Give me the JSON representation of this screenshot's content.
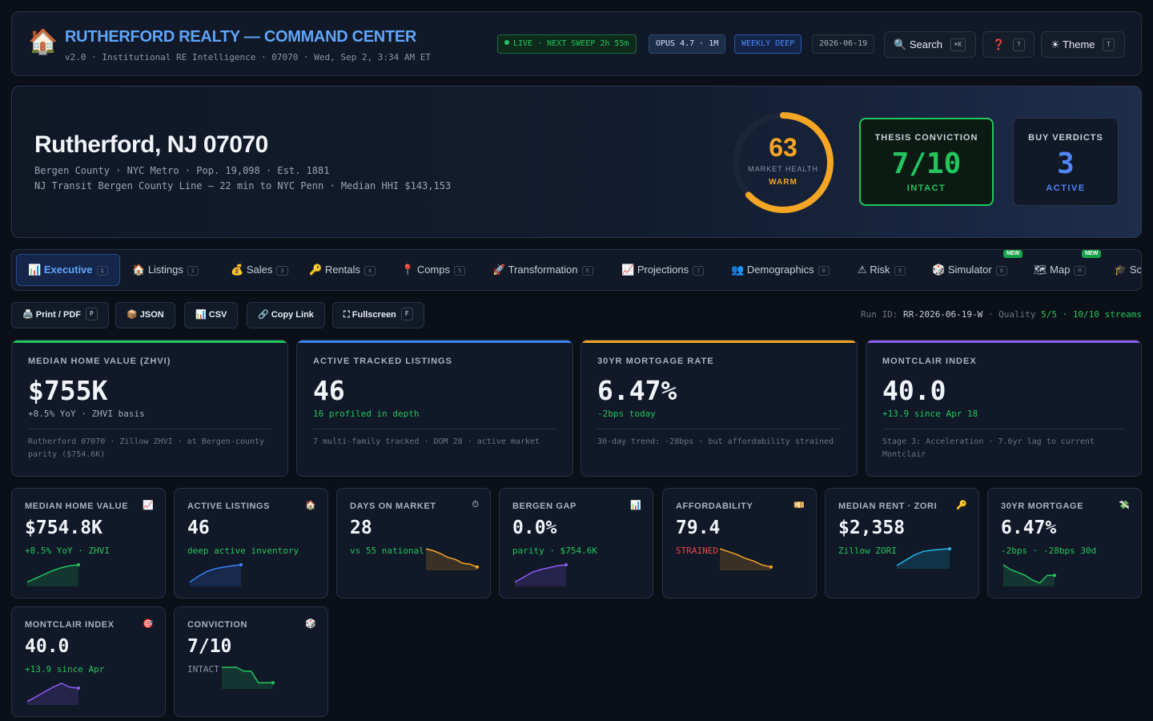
{
  "header": {
    "logo_glyph": "🏠",
    "title": "RUTHERFORD REALTY — COMMAND CENTER",
    "subtitle": "v2.0 · Institutional RE Intelligence · 07070 · Wed, Sep 2, 3:34 AM ET",
    "live_pill": "LIVE · NEXT SWEEP 2h 55m",
    "model_pill": "OPUS 4.7 · 1M",
    "mode_pill": "WEEKLY DEEP",
    "date_pill": "2026-06-19",
    "search_label": "Search",
    "search_kbd": "⌘K",
    "help_glyph": "❓",
    "help_kbd": "?",
    "theme_label": "Theme",
    "theme_kbd": "T"
  },
  "hero": {
    "city": "Rutherford, NJ 07070",
    "line1": "Bergen County · NYC Metro · Pop. 19,098 · Est. 1881",
    "line2": "NJ Transit Bergen County Line — 22 min to NYC Penn · Median HHI $143,153",
    "market_health": {
      "value": "63",
      "score": 63,
      "max": 100,
      "label": "MARKET HEALTH",
      "status": "WARM",
      "color": "#f5a524"
    },
    "thesis": {
      "title": "THESIS CONVICTION",
      "value": "7/10",
      "status": "INTACT"
    },
    "buy": {
      "title": "BUY VERDICTS",
      "value": "3",
      "status": "ACTIVE"
    }
  },
  "tabs": [
    {
      "icon": "📊",
      "label": "Executive",
      "key": "1",
      "active": true
    },
    {
      "icon": "🏠",
      "label": "Listings",
      "key": "2"
    },
    {
      "icon": "💰",
      "label": "Sales",
      "key": "3"
    },
    {
      "icon": "🔑",
      "label": "Rentals",
      "key": "4"
    },
    {
      "icon": "📍",
      "label": "Comps",
      "key": "5"
    },
    {
      "icon": "🚀",
      "label": "Transformation",
      "key": "6"
    },
    {
      "icon": "📈",
      "label": "Projections",
      "key": "7"
    },
    {
      "icon": "👥",
      "label": "Demographics",
      "key": "8"
    },
    {
      "icon": "⚠",
      "label": "Risk",
      "key": "9"
    },
    {
      "icon": "🎲",
      "label": "Simulator",
      "key": "0",
      "badge": "NEW"
    },
    {
      "icon": "🗺",
      "label": "Map",
      "key": "M",
      "badge": "NEW"
    },
    {
      "icon": "🎓",
      "label": "Sc"
    }
  ],
  "toolbar": {
    "print": "🖨️ Print / PDF",
    "print_kbd": "P",
    "json": "📦 JSON",
    "csv": "📊 CSV",
    "copy": "🔗 Copy Link",
    "fullscreen": "⛶ Fullscreen",
    "fullscreen_kbd": "F",
    "run_prefix": "Run ID:",
    "run_id": "RR-2026-06-19-W",
    "quality_prefix": "· Quality",
    "quality": "5/5",
    "streams": "· 10/10 streams"
  },
  "big_cards": [
    {
      "label": "MEDIAN HOME VALUE (ZHVI)",
      "value": "$755K",
      "sub": "+8.5% YoY · ZHVI basis",
      "sub_color": "#a3adbd",
      "note": "Rutherford 07070 · Zillow ZHVI · at Bergen-county parity ($754.6K)",
      "accent": "#22c55e"
    },
    {
      "label": "ACTIVE TRACKED LISTINGS",
      "value": "46",
      "sub": "16 profiled in depth",
      "sub_color": "#22c55e",
      "note": "7 multi-family tracked · DOM 28 · active market",
      "accent": "#3b82f6"
    },
    {
      "label": "30YR MORTGAGE RATE",
      "value": "6.47%",
      "sub": "-2bps today",
      "sub_color": "#22c55e",
      "note": "30-day trend: -28bps · but affordability strained",
      "accent": "#f5a524"
    },
    {
      "label": "MONTCLAIR INDEX",
      "value": "40.0",
      "sub": "+13.9 since Apr 18",
      "sub_color": "#22c55e",
      "note": "Stage 3: Acceleration · 7.6yr lag to current Montclair",
      "accent": "#8b5cf6"
    }
  ],
  "small_cards": [
    {
      "label": "MEDIAN HOME VALUE",
      "icon": "📈",
      "value": "$754.8K",
      "sub": "+8.5% YoY · ZHVI",
      "sub_color": "#22c55e",
      "spark_color": "#22c55e",
      "spark": [
        0.1,
        0.3,
        0.5,
        0.7,
        0.85,
        0.95,
        1.0
      ]
    },
    {
      "label": "ACTIVE LISTINGS",
      "icon": "🏠",
      "value": "46",
      "sub": "deep active inventory",
      "sub_color": "#22c55e",
      "spark_color": "#3b82f6",
      "spark": [
        0.1,
        0.4,
        0.65,
        0.8,
        0.88,
        0.95,
        1.0
      ]
    },
    {
      "label": "DAYS ON MARKET",
      "icon": "⏱",
      "value": "28",
      "sub": "vs 55 national",
      "sub_color": "#22c55e",
      "spark_color": "#f5a524",
      "spark": [
        1.0,
        0.9,
        0.75,
        0.55,
        0.45,
        0.25,
        0.2,
        0.05
      ]
    },
    {
      "label": "BERGEN GAP",
      "icon": "📊",
      "value": "0.0%",
      "sub": "parity · $754.6K",
      "sub_color": "#22c55e",
      "spark_color": "#8b5cf6",
      "spark": [
        0.1,
        0.35,
        0.6,
        0.75,
        0.85,
        0.95,
        1.0
      ]
    },
    {
      "label": "AFFORDABILITY",
      "icon": "💴",
      "value": "79.4",
      "sub": "STRAINED",
      "sub_color": "#ef4444",
      "spark_color": "#f5a524",
      "spark": [
        1.0,
        0.85,
        0.7,
        0.5,
        0.35,
        0.15,
        0.05
      ]
    },
    {
      "label": "MEDIAN RENT · ZORI",
      "icon": "🔑",
      "value": "$2,358",
      "sub": "Zillow ZORI",
      "sub_color": "#22c55e",
      "spark_color": "#22b5e6",
      "spark": [
        0.05,
        0.35,
        0.65,
        0.85,
        0.92,
        0.97,
        1.0
      ]
    },
    {
      "label": "30YR MORTGAGE",
      "icon": "💸",
      "value": "6.47%",
      "sub": "-2bps · -28bps 30d",
      "sub_color": "#22c55e",
      "spark_color": "#22c55e",
      "spark": [
        1.0,
        0.75,
        0.6,
        0.45,
        0.2,
        0.05,
        0.45,
        0.45
      ]
    },
    {
      "label": "MONTCLAIR INDEX",
      "icon": "🎯",
      "value": "40.0",
      "sub": "+13.9 since Apr",
      "sub_color": "#22c55e",
      "spark_color": "#8b5cf6",
      "spark": [
        0.05,
        0.3,
        0.55,
        0.8,
        1.0,
        0.8,
        0.75
      ]
    },
    {
      "label": "CONVICTION",
      "icon": "🎲",
      "value": "7/10",
      "sub": "INTACT",
      "sub_color": "#8b95a5",
      "spark_color": "#22c55e",
      "spark": [
        1.0,
        1.0,
        1.0,
        0.8,
        0.8,
        0.2,
        0.2,
        0.2
      ]
    }
  ]
}
